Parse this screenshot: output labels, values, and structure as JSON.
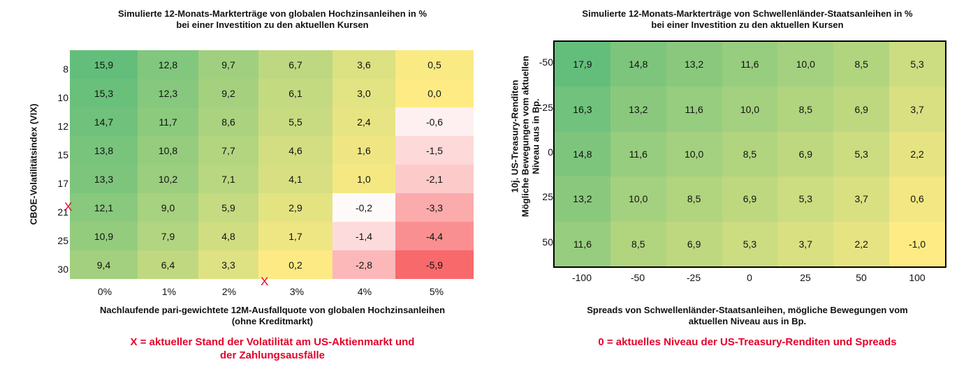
{
  "chart_data": [
    {
      "type": "heatmap",
      "title": "Simulierte 12-Monats-Markterträge von globalen Hochzinsanleihen in %",
      "subtitle": "bei einer Investition zu den aktuellen Kursen",
      "ylabel": "CBOE-Volatilitätsindex (VIX)",
      "xlabel": "Nachlaufende pari-gewichtete 12M-Ausfallquote von globalen Hochzinsanleihen",
      "xlabel2": "(ohne Kreditmarkt)",
      "x_categories": [
        "0%",
        "1%",
        "2%",
        "3%",
        "4%",
        "5%"
      ],
      "y_categories": [
        "8",
        "10",
        "12",
        "15",
        "17",
        "21",
        "25",
        "30"
      ],
      "values": [
        [
          "15,9",
          "12,8",
          "9,7",
          "6,7",
          "3,6",
          "0,5"
        ],
        [
          "15,3",
          "12,3",
          "9,2",
          "6,1",
          "3,0",
          "0,0"
        ],
        [
          "14,7",
          "11,7",
          "8,6",
          "5,5",
          "2,4",
          "-0,6"
        ],
        [
          "13,8",
          "10,8",
          "7,7",
          "4,6",
          "1,6",
          "-1,5"
        ],
        [
          "13,3",
          "10,2",
          "7,1",
          "4,1",
          "1,0",
          "-2,1"
        ],
        [
          "12,1",
          "9,0",
          "5,9",
          "2,9",
          "-0,2",
          "-3,3"
        ],
        [
          "10,9",
          "7,9",
          "4,8",
          "1,7",
          "-1,4",
          "-4,4"
        ],
        [
          "9,4",
          "6,4",
          "3,3",
          "0,2",
          "-2,8",
          "-5,9"
        ]
      ],
      "marker": "X",
      "note_line1": "X = aktueller Stand der Volatilität am US-Aktienmarkt und",
      "note_line2": "der Zahlungsausfälle",
      "colors": {
        "high": "#63be7b",
        "mid": "#ffeb84",
        "zero": "#ffffff",
        "low": "#f8696b",
        "note": "#e4002b"
      }
    },
    {
      "type": "heatmap",
      "title": "Simulierte 12-Monats-Markterträge von Schwellenländer-Staatsanleihen in %",
      "subtitle": "bei einer Investition zu den aktuellen Kursen",
      "ylabel1": "10j. US-Treasury-Renditen",
      "ylabel2": "Mögliche Bewegungen vom aktuellen",
      "ylabel3": "Niveau aus in Bp.",
      "xlabel": "Spreads von Schwellenländer-Staatsanleihen, mögliche Bewegungen vom",
      "xlabel2": "aktuellen Niveau aus in Bp.",
      "x_categories": [
        "-100",
        "-50",
        "-25",
        "0",
        "25",
        "50",
        "100"
      ],
      "y_categories": [
        "-50",
        "-25",
        "0",
        "25",
        "50"
      ],
      "values": [
        [
          "17,9",
          "14,8",
          "13,2",
          "11,6",
          "10,0",
          "8,5",
          "5,3"
        ],
        [
          "16,3",
          "13,2",
          "11,6",
          "10,0",
          "8,5",
          "6,9",
          "3,7"
        ],
        [
          "14,8",
          "11,6",
          "10,0",
          "8,5",
          "6,9",
          "5,3",
          "2,2"
        ],
        [
          "13,2",
          "10,0",
          "8,5",
          "6,9",
          "5,3",
          "3,7",
          "0,6"
        ],
        [
          "11,6",
          "8,5",
          "6,9",
          "5,3",
          "3,7",
          "2,2",
          "-1,0"
        ]
      ],
      "note": "0 = aktuelles Niveau der US-Treasury-Renditen und Spreads",
      "colors": {
        "high": "#63be7b",
        "low": "#ffeb84",
        "note": "#e4002b"
      }
    }
  ]
}
